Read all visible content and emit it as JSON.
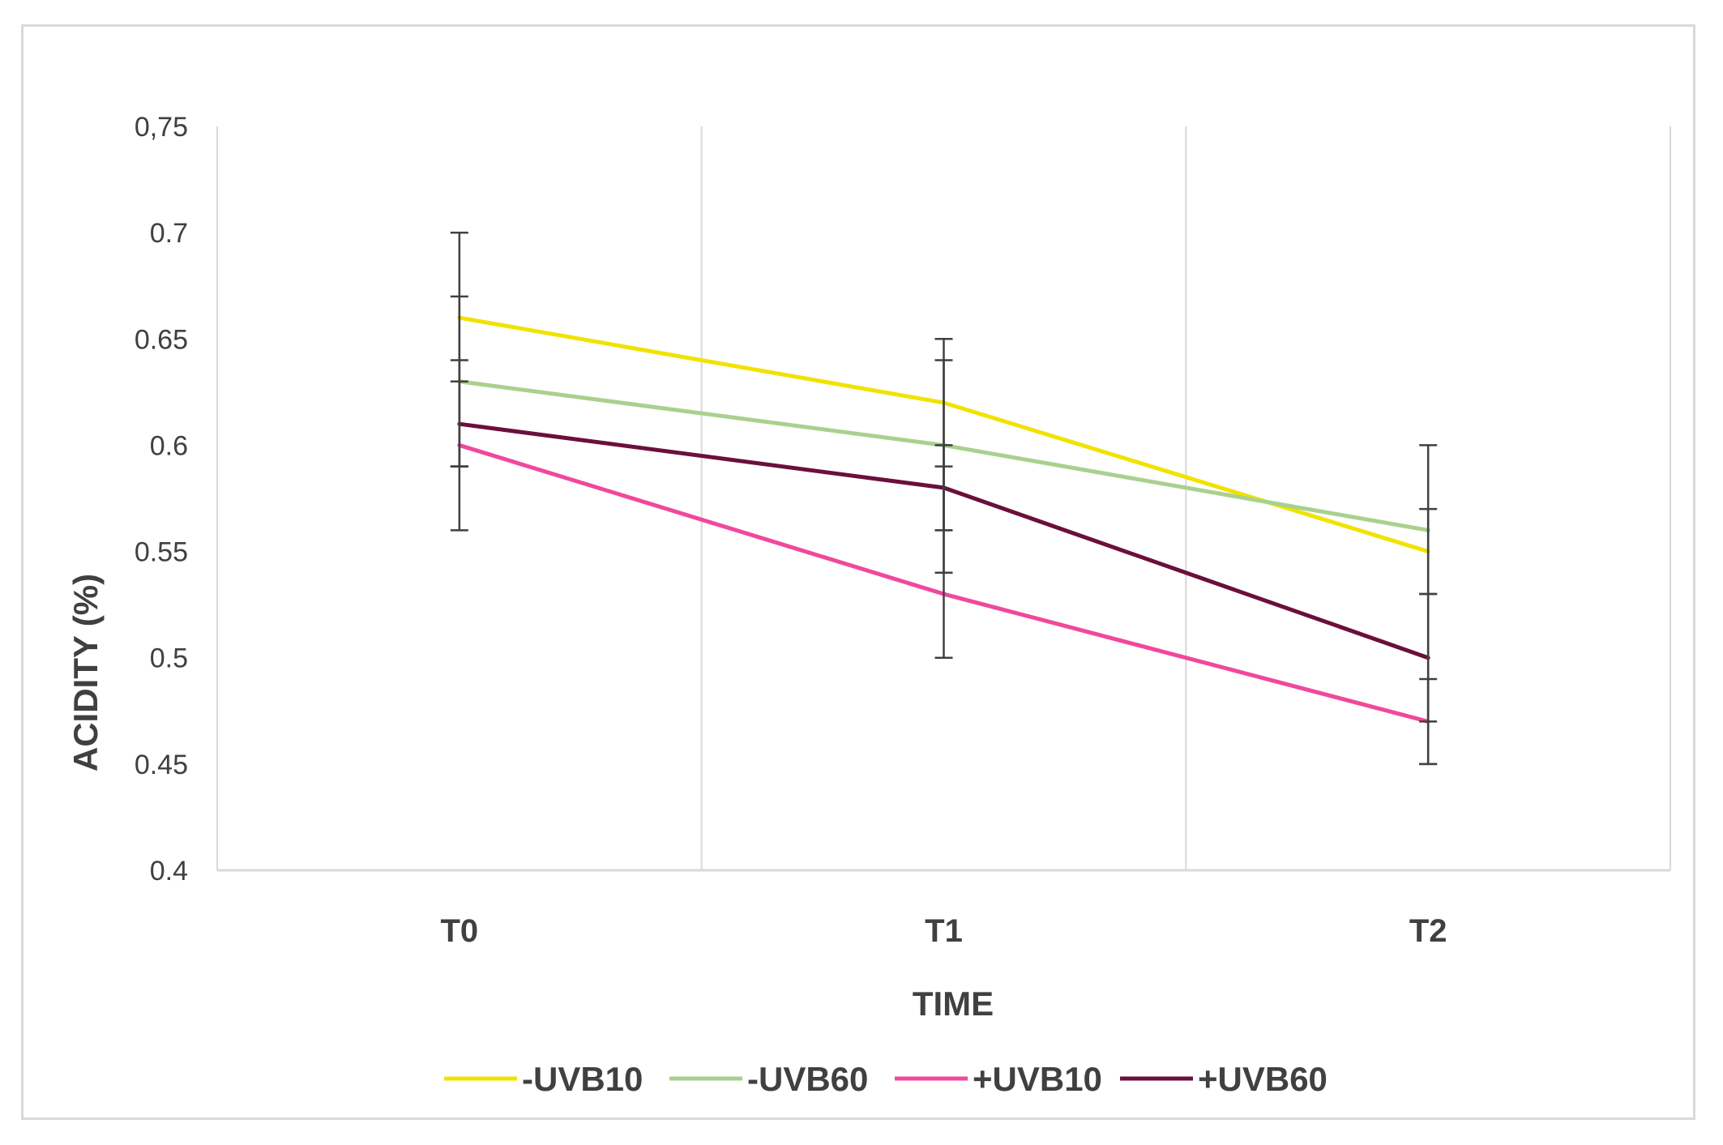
{
  "chart_data": {
    "type": "line",
    "xlabel": "TIME",
    "ylabel": "ACIDITY (%)",
    "categories": [
      "T0",
      "T1",
      "T2"
    ],
    "ylim": [
      0.4,
      0.75
    ],
    "yticks": [
      "0.4",
      "0.45",
      "0.5",
      "0.55",
      "0.6",
      "0.65",
      "0.7",
      "0,75"
    ],
    "ytick_values": [
      0.4,
      0.45,
      0.5,
      0.55,
      0.6,
      0.65,
      0.7,
      0.75
    ],
    "grid": "vertical",
    "legend_position": "bottom",
    "series": [
      {
        "name": "-UVB10",
        "color": "#f2e200",
        "values": [
          0.66,
          0.62,
          0.55
        ],
        "error_low": [
          0.56,
          0.54,
          0.47
        ],
        "error_high": [
          0.7,
          0.65,
          0.6
        ]
      },
      {
        "name": "-UVB60",
        "color": "#a9d18e",
        "values": [
          0.63,
          0.6,
          0.56
        ],
        "error_low": [
          0.59,
          0.56,
          0.53
        ],
        "error_high": [
          0.67,
          0.64,
          0.57
        ]
      },
      {
        "name": "+UVB10",
        "color": "#f0489c",
        "values": [
          0.6,
          0.53,
          0.47
        ],
        "error_low": [
          0.59,
          0.5,
          0.45
        ],
        "error_high": [
          0.64,
          0.59,
          0.49
        ]
      },
      {
        "name": "+UVB60",
        "color": "#6b0f3c",
        "values": [
          0.61,
          0.58,
          0.5
        ],
        "error_low": [
          0.59,
          0.56,
          0.45
        ],
        "error_high": [
          0.63,
          0.6,
          0.53
        ]
      }
    ]
  },
  "colors": {
    "axis": "#d9d9d9",
    "gridline": "#d9d9d9",
    "errorbar": "#404040",
    "text": "#404040"
  }
}
